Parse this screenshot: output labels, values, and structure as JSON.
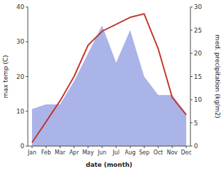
{
  "chart_data": {
    "type": "line",
    "xlabel": "date (month)",
    "ylabel": "max temp (C)",
    "y2label": "med. precipitation (kg/m2)",
    "categories": [
      "Jan",
      "Feb",
      "Mar",
      "Apr",
      "May",
      "Jun",
      "Jul",
      "Aug",
      "Sep",
      "Oct",
      "Nov",
      "Dec"
    ],
    "series": [
      {
        "type": "area",
        "axis": "y2",
        "color": "#aab4e8",
        "values": [
          8,
          9,
          9,
          14,
          20,
          26,
          18,
          25,
          15,
          11,
          11,
          7
        ]
      },
      {
        "type": "line",
        "color": "#c0392b",
        "values": [
          1,
          7,
          13,
          20,
          29,
          33,
          35,
          37,
          38,
          28,
          14,
          9
        ]
      }
    ],
    "ylim": [
      0,
      40
    ],
    "yticks": [
      0,
      10,
      20,
      30,
      40
    ],
    "y2lim": [
      0,
      30
    ],
    "y2ticks": [
      0,
      5,
      10,
      15,
      20,
      25,
      30
    ],
    "grid": false
  }
}
